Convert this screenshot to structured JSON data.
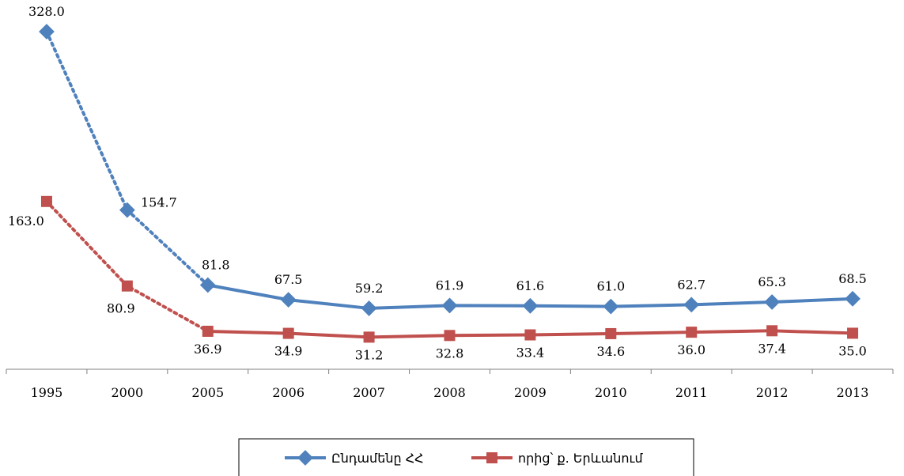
{
  "chart_data": {
    "type": "line",
    "title": "",
    "xlabel": "",
    "ylabel": "",
    "categories": [
      "1995",
      "2000",
      "2005",
      "2006",
      "2007",
      "2008",
      "2009",
      "2010",
      "2011",
      "2012",
      "2013"
    ],
    "ylim": [
      0,
      350
    ],
    "grid": false,
    "legend_position": "bottom",
    "series": [
      {
        "name": "Ընդամենը ՀՀ",
        "values": [
          328.0,
          154.7,
          81.8,
          67.5,
          59.2,
          61.9,
          61.6,
          61.0,
          62.7,
          65.3,
          68.5
        ],
        "labels": [
          "328.0",
          "154.7",
          "81.8",
          "67.5",
          "59.2",
          "61.9",
          "61.6",
          "61.0",
          "62.7",
          "65.3",
          "68.5"
        ],
        "color": "#4f81bd",
        "marker": "diamond",
        "dotted_until_index": 2
      },
      {
        "name": "որից՝ ք. Երևանում",
        "values": [
          163.0,
          80.9,
          36.9,
          34.9,
          31.2,
          32.8,
          33.4,
          34.6,
          36.0,
          37.4,
          35.0
        ],
        "labels": [
          "163.0",
          "80.9",
          "36.9",
          "34.9",
          "31.2",
          "32.8",
          "33.4",
          "34.6",
          "36.0",
          "37.4",
          "35.0"
        ],
        "color": "#c0504d",
        "marker": "square",
        "dotted_until_index": 2
      }
    ]
  }
}
